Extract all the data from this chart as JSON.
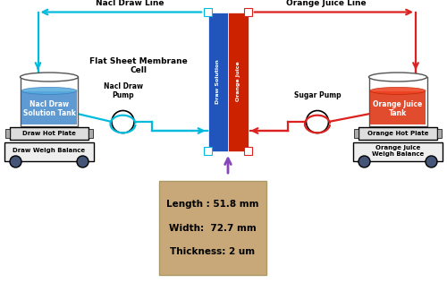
{
  "bg_color": "#ffffff",
  "blue_color": "#00bbdd",
  "red_color": "#dd2020",
  "purple_color": "#8844bb",
  "membrane_blue": "#2255bb",
  "membrane_red": "#cc2200",
  "tan_color": "#c8a878",
  "labels": {
    "nacl_draw_line": "Nacl Draw Line",
    "orange_juice_line": "Orange Juice Line",
    "flat_sheet": "Flat Sheet Membrane\nCell",
    "draw_solution": "Draw Solution",
    "orange_juice_label": "Orange Juice",
    "nacl_tank": "Nacl Draw\nSolution Tank",
    "nacl_pump": "Nacl Draw\nPump",
    "draw_hot": "Draw Hot Plate",
    "draw_weigh": "Draw Weigh Balance",
    "sugar_pump": "Sugar Pump",
    "oj_tank": "Orange Juice\nTank",
    "oj_hot": "Orange Hot Plate",
    "oj_weigh": "Orange Juice\nWeigh Balance",
    "length": "Length : 51.8 mm",
    "width": "Width:  72.7 mm",
    "thickness": "Thickness: 2 um"
  }
}
